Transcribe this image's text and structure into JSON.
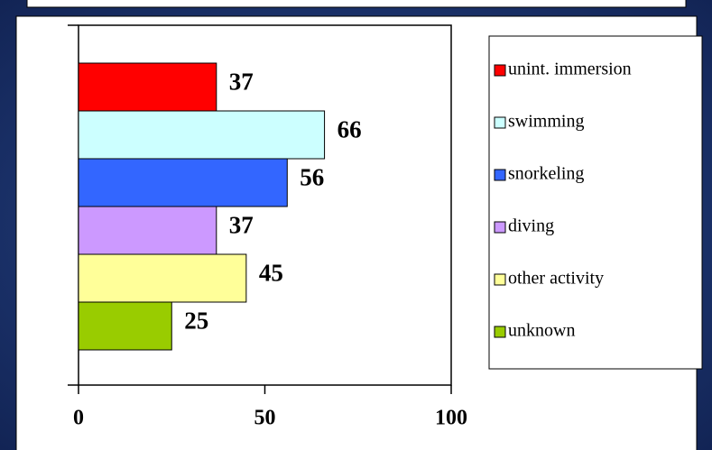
{
  "chart_data": {
    "type": "bar",
    "orientation": "horizontal",
    "series": [
      {
        "name": "unint. immersion",
        "color": "#ff0000",
        "values": [
          37
        ]
      },
      {
        "name": "swimming",
        "color": "#ccffff",
        "values": [
          66
        ]
      },
      {
        "name": "snorkeling",
        "color": "#3366ff",
        "values": [
          56
        ]
      },
      {
        "name": "diving",
        "color": "#cc99ff",
        "values": [
          37
        ]
      },
      {
        "name": "other activity",
        "color": "#ffff99",
        "values": [
          45
        ]
      },
      {
        "name": "unknown",
        "color": "#99cc00",
        "values": [
          25
        ]
      }
    ],
    "xlim": [
      0,
      100
    ],
    "xticks": [
      0,
      50,
      100
    ],
    "grid": false,
    "legend": "right"
  }
}
